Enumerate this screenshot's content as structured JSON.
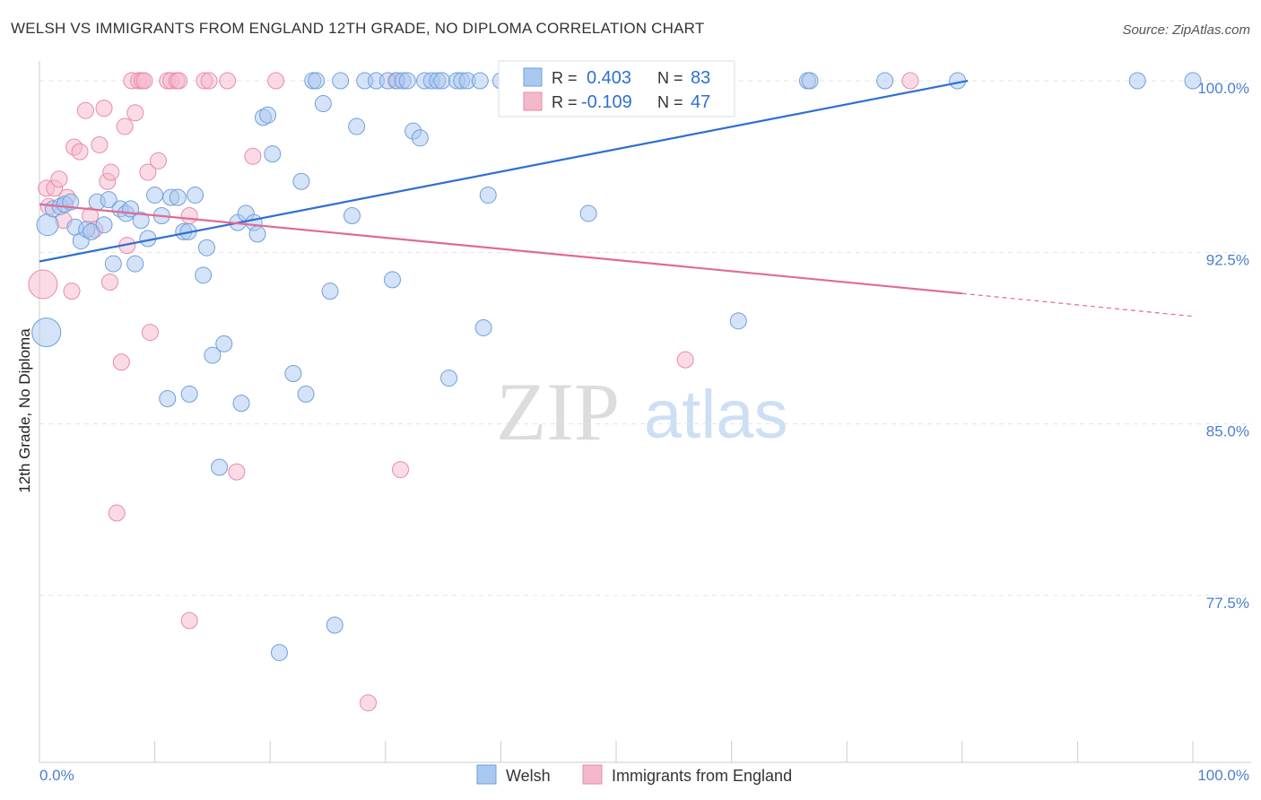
{
  "header": {
    "title": "WELSH VS IMMIGRANTS FROM ENGLAND 12TH GRADE, NO DIPLOMA CORRELATION CHART",
    "source": "Source: ZipAtlas.com"
  },
  "watermark": {
    "zip": "ZIP",
    "atlas": "atlas"
  },
  "legend_top": {
    "rows": [
      {
        "r_label": "R =",
        "r_value": "0.403",
        "n_label": "N =",
        "n_value": "83"
      },
      {
        "r_label": "R =",
        "r_value": "-0.109",
        "n_label": "N =",
        "n_value": "47"
      }
    ]
  },
  "colors": {
    "welsh_fill": "#a9c8f0",
    "welsh_stroke": "#6f9fdc",
    "welsh_line": "#2e6fd0",
    "england_fill": "#f5b8cb",
    "england_stroke": "#e88aa8",
    "england_line": "#e06b94",
    "tick_label": "#4a7fd0",
    "grid": "#e3e3e3"
  },
  "chart_data": {
    "type": "scatter",
    "xlabel": "",
    "ylabel": "12th Grade, No Diploma",
    "xlim": [
      0,
      100
    ],
    "ylim": [
      70.2,
      101.1
    ],
    "x_tick_labels": [
      "0.0%",
      "100.0%"
    ],
    "y_ticks": [
      77.5,
      85.0,
      92.5,
      100.0
    ],
    "y_tick_labels": [
      "77.5%",
      "85.0%",
      "92.5%",
      "100.0%"
    ],
    "grid": true,
    "legend_position": "bottom-center",
    "series": [
      {
        "name": "Welsh",
        "r": 0.403,
        "n": 83,
        "trend": {
          "x0": 0,
          "y0": 92.1,
          "x1": 80.5,
          "y1": 100.0
        },
        "points": [
          {
            "x": 0.6,
            "y": 89.0,
            "s": 16
          },
          {
            "x": 0.7,
            "y": 93.7,
            "s": 12
          },
          {
            "x": 1.2,
            "y": 94.4,
            "s": 9
          },
          {
            "x": 1.8,
            "y": 94.5,
            "s": 9
          },
          {
            "x": 2.2,
            "y": 94.6,
            "s": 9
          },
          {
            "x": 2.7,
            "y": 94.7,
            "s": 9
          },
          {
            "x": 3.1,
            "y": 93.6,
            "s": 9
          },
          {
            "x": 3.6,
            "y": 93.0,
            "s": 9
          },
          {
            "x": 4.1,
            "y": 93.5,
            "s": 9
          },
          {
            "x": 4.5,
            "y": 93.4,
            "s": 9
          },
          {
            "x": 5.0,
            "y": 94.7,
            "s": 9
          },
          {
            "x": 5.6,
            "y": 93.7,
            "s": 9
          },
          {
            "x": 6.0,
            "y": 94.8,
            "s": 9
          },
          {
            "x": 6.4,
            "y": 92.0,
            "s": 9
          },
          {
            "x": 7.0,
            "y": 94.4,
            "s": 9
          },
          {
            "x": 7.5,
            "y": 94.2,
            "s": 9
          },
          {
            "x": 7.9,
            "y": 94.4,
            "s": 9
          },
          {
            "x": 8.3,
            "y": 92.0,
            "s": 9
          },
          {
            "x": 8.8,
            "y": 93.9,
            "s": 9
          },
          {
            "x": 9.4,
            "y": 93.1,
            "s": 9
          },
          {
            "x": 10.0,
            "y": 95.0,
            "s": 9
          },
          {
            "x": 10.6,
            "y": 94.1,
            "s": 9
          },
          {
            "x": 11.1,
            "y": 86.1,
            "s": 9
          },
          {
            "x": 11.4,
            "y": 94.9,
            "s": 9
          },
          {
            "x": 12.0,
            "y": 94.9,
            "s": 9
          },
          {
            "x": 12.5,
            "y": 93.4,
            "s": 9
          },
          {
            "x": 12.9,
            "y": 93.4,
            "s": 9
          },
          {
            "x": 13.0,
            "y": 86.3,
            "s": 9
          },
          {
            "x": 13.5,
            "y": 95.0,
            "s": 9
          },
          {
            "x": 14.2,
            "y": 91.5,
            "s": 9
          },
          {
            "x": 14.5,
            "y": 92.7,
            "s": 9
          },
          {
            "x": 15.0,
            "y": 88.0,
            "s": 9
          },
          {
            "x": 15.6,
            "y": 83.1,
            "s": 9
          },
          {
            "x": 16.0,
            "y": 88.5,
            "s": 9
          },
          {
            "x": 17.2,
            "y": 93.8,
            "s": 9
          },
          {
            "x": 17.5,
            "y": 85.9,
            "s": 9
          },
          {
            "x": 17.9,
            "y": 94.2,
            "s": 9
          },
          {
            "x": 18.6,
            "y": 93.8,
            "s": 9
          },
          {
            "x": 18.9,
            "y": 93.3,
            "s": 9
          },
          {
            "x": 19.4,
            "y": 98.4,
            "s": 9
          },
          {
            "x": 19.8,
            "y": 98.5,
            "s": 9
          },
          {
            "x": 20.2,
            "y": 96.8,
            "s": 9
          },
          {
            "x": 20.8,
            "y": 75.0,
            "s": 9
          },
          {
            "x": 22.0,
            "y": 87.2,
            "s": 9
          },
          {
            "x": 22.7,
            "y": 95.6,
            "s": 9
          },
          {
            "x": 23.1,
            "y": 86.3,
            "s": 9
          },
          {
            "x": 23.7,
            "y": 100.0,
            "s": 9
          },
          {
            "x": 24.0,
            "y": 100.0,
            "s": 9
          },
          {
            "x": 24.6,
            "y": 99.0,
            "s": 9
          },
          {
            "x": 25.2,
            "y": 90.8,
            "s": 9
          },
          {
            "x": 25.6,
            "y": 76.2,
            "s": 9
          },
          {
            "x": 26.1,
            "y": 100.0,
            "s": 9
          },
          {
            "x": 27.1,
            "y": 94.1,
            "s": 9
          },
          {
            "x": 27.5,
            "y": 98.0,
            "s": 9
          },
          {
            "x": 28.2,
            "y": 100.0,
            "s": 9
          },
          {
            "x": 29.2,
            "y": 100.0,
            "s": 9
          },
          {
            "x": 30.2,
            "y": 100.0,
            "s": 9
          },
          {
            "x": 30.6,
            "y": 91.3,
            "s": 9
          },
          {
            "x": 31.0,
            "y": 100.0,
            "s": 9
          },
          {
            "x": 31.5,
            "y": 100.0,
            "s": 9
          },
          {
            "x": 31.9,
            "y": 100.0,
            "s": 9
          },
          {
            "x": 32.4,
            "y": 97.8,
            "s": 9
          },
          {
            "x": 33.0,
            "y": 97.5,
            "s": 9
          },
          {
            "x": 33.4,
            "y": 100.0,
            "s": 9
          },
          {
            "x": 34.0,
            "y": 100.0,
            "s": 9
          },
          {
            "x": 34.5,
            "y": 100.0,
            "s": 9
          },
          {
            "x": 34.9,
            "y": 100.0,
            "s": 9
          },
          {
            "x": 35.5,
            "y": 87.0,
            "s": 9
          },
          {
            "x": 36.2,
            "y": 100.0,
            "s": 9
          },
          {
            "x": 36.6,
            "y": 100.0,
            "s": 9
          },
          {
            "x": 37.1,
            "y": 100.0,
            "s": 9
          },
          {
            "x": 38.2,
            "y": 100.0,
            "s": 9
          },
          {
            "x": 38.5,
            "y": 89.2,
            "s": 9
          },
          {
            "x": 38.9,
            "y": 95.0,
            "s": 9
          },
          {
            "x": 40.0,
            "y": 100.0,
            "s": 9
          },
          {
            "x": 42.2,
            "y": 100.0,
            "s": 9
          },
          {
            "x": 47.6,
            "y": 94.2,
            "s": 9
          },
          {
            "x": 60.6,
            "y": 89.5,
            "s": 9
          },
          {
            "x": 66.6,
            "y": 100.0,
            "s": 9
          },
          {
            "x": 66.8,
            "y": 100.0,
            "s": 9
          },
          {
            "x": 73.3,
            "y": 100.0,
            "s": 9
          },
          {
            "x": 79.6,
            "y": 100.0,
            "s": 9
          },
          {
            "x": 95.2,
            "y": 100.0,
            "s": 9
          },
          {
            "x": 100.0,
            "y": 100.0,
            "s": 9
          }
        ]
      },
      {
        "name": "Immigrants from England",
        "r": -0.109,
        "n": 47,
        "trend": {
          "x0": 0,
          "y0": 94.6,
          "x1": 80.0,
          "y1": 90.7,
          "dash_x1": 100,
          "dash_y1": 89.7
        },
        "points": [
          {
            "x": 0.3,
            "y": 91.1,
            "s": 16
          },
          {
            "x": 0.6,
            "y": 95.3,
            "s": 9
          },
          {
            "x": 0.8,
            "y": 94.5,
            "s": 9
          },
          {
            "x": 1.3,
            "y": 95.3,
            "s": 9
          },
          {
            "x": 1.7,
            "y": 95.7,
            "s": 9
          },
          {
            "x": 2.1,
            "y": 93.9,
            "s": 9
          },
          {
            "x": 2.4,
            "y": 94.9,
            "s": 9
          },
          {
            "x": 2.8,
            "y": 90.8,
            "s": 9
          },
          {
            "x": 3.0,
            "y": 97.1,
            "s": 9
          },
          {
            "x": 3.5,
            "y": 96.9,
            "s": 9
          },
          {
            "x": 4.0,
            "y": 98.7,
            "s": 9
          },
          {
            "x": 4.4,
            "y": 94.1,
            "s": 9
          },
          {
            "x": 4.8,
            "y": 93.5,
            "s": 9
          },
          {
            "x": 5.2,
            "y": 97.2,
            "s": 9
          },
          {
            "x": 5.6,
            "y": 98.8,
            "s": 9
          },
          {
            "x": 5.9,
            "y": 95.6,
            "s": 9
          },
          {
            "x": 6.2,
            "y": 96.0,
            "s": 9
          },
          {
            "x": 6.1,
            "y": 91.2,
            "s": 9
          },
          {
            "x": 6.7,
            "y": 81.1,
            "s": 9
          },
          {
            "x": 7.1,
            "y": 87.7,
            "s": 9
          },
          {
            "x": 7.4,
            "y": 98.0,
            "s": 9
          },
          {
            "x": 7.6,
            "y": 92.8,
            "s": 9
          },
          {
            "x": 8.0,
            "y": 100.0,
            "s": 9
          },
          {
            "x": 8.3,
            "y": 98.6,
            "s": 9
          },
          {
            "x": 8.6,
            "y": 100.0,
            "s": 9
          },
          {
            "x": 8.9,
            "y": 100.0,
            "s": 9
          },
          {
            "x": 9.1,
            "y": 100.0,
            "s": 9
          },
          {
            "x": 9.4,
            "y": 96.0,
            "s": 9
          },
          {
            "x": 9.6,
            "y": 89.0,
            "s": 9
          },
          {
            "x": 10.3,
            "y": 96.5,
            "s": 9
          },
          {
            "x": 11.1,
            "y": 100.0,
            "s": 9
          },
          {
            "x": 11.4,
            "y": 100.0,
            "s": 9
          },
          {
            "x": 11.9,
            "y": 100.0,
            "s": 9
          },
          {
            "x": 12.1,
            "y": 100.0,
            "s": 9
          },
          {
            "x": 13.0,
            "y": 94.1,
            "s": 9
          },
          {
            "x": 13.0,
            "y": 76.4,
            "s": 9
          },
          {
            "x": 14.3,
            "y": 100.0,
            "s": 9
          },
          {
            "x": 14.7,
            "y": 100.0,
            "s": 9
          },
          {
            "x": 16.3,
            "y": 100.0,
            "s": 9
          },
          {
            "x": 17.1,
            "y": 82.9,
            "s": 9
          },
          {
            "x": 18.5,
            "y": 96.7,
            "s": 9
          },
          {
            "x": 20.5,
            "y": 100.0,
            "s": 9
          },
          {
            "x": 28.5,
            "y": 72.8,
            "s": 9
          },
          {
            "x": 30.9,
            "y": 100.0,
            "s": 9
          },
          {
            "x": 31.3,
            "y": 83.0,
            "s": 9
          },
          {
            "x": 56.0,
            "y": 87.8,
            "s": 9
          },
          {
            "x": 75.5,
            "y": 100.0,
            "s": 9
          }
        ]
      }
    ]
  }
}
